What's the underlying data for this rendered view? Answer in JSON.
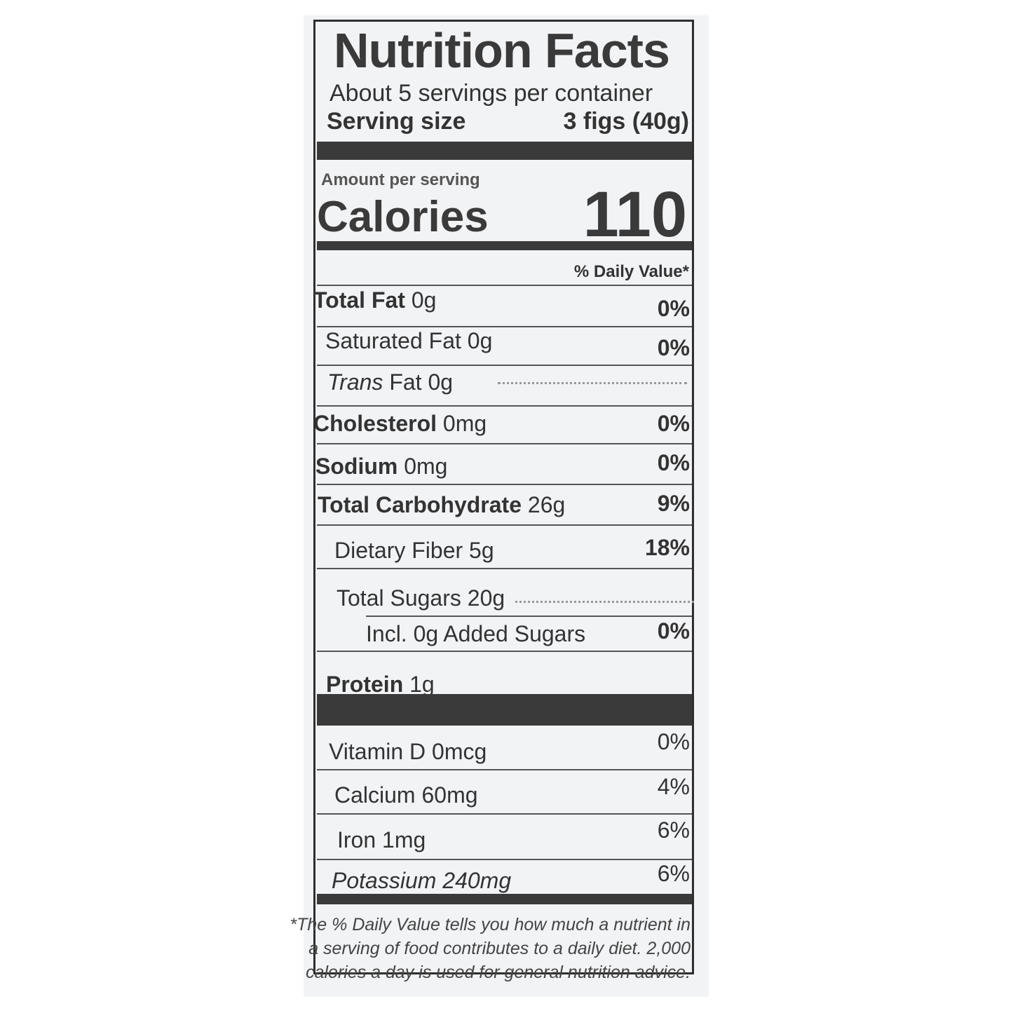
{
  "title": "Nutrition Facts",
  "servings_per_container": "About 5 servings per container",
  "serving_size_label": "Serving size",
  "serving_size_value": "3 figs (40g)",
  "amount_per_serving": "Amount per serving",
  "calories_label": "Calories",
  "calories_value": "110",
  "daily_value_header": "% Daily Value*",
  "nutrients": [
    {
      "label": "Total Fat",
      "amount": "0g",
      "dv": "0%"
    },
    {
      "label": "Saturated Fat",
      "amount": "0g",
      "dv": "0%"
    },
    {
      "label": "Trans",
      "label_rest": "Fat",
      "amount": "0g",
      "dv": ""
    },
    {
      "label": "Cholesterol",
      "amount": "0mg",
      "dv": "0%"
    },
    {
      "label": "Sodium",
      "amount": "0mg",
      "dv": "0%"
    },
    {
      "label": "Total Carbohydrate",
      "amount": "26g",
      "dv": "9%"
    },
    {
      "label": "Dietary Fiber",
      "amount": "5g",
      "dv": "18%"
    },
    {
      "label": "Total Sugars",
      "amount": "20g",
      "dv": ""
    },
    {
      "label": "Incl. 0g Added Sugars",
      "amount": "",
      "dv": "0%"
    },
    {
      "label": "Protein",
      "amount": "1g",
      "dv": ""
    }
  ],
  "vitamins": [
    {
      "label": "Vitamin D 0mcg",
      "dv": "0%"
    },
    {
      "label": "Calcium 60mg",
      "dv": "4%"
    },
    {
      "label": "Iron 1mg",
      "dv": "6%"
    },
    {
      "label": "Potassium 240mg",
      "dv": "6%"
    }
  ],
  "footnote": [
    "*The % Daily Value tells you how much a nutrient in",
    "a serving of food contributes to a daily diet. 2,000",
    "calories a day is used for general nutrition advice."
  ]
}
